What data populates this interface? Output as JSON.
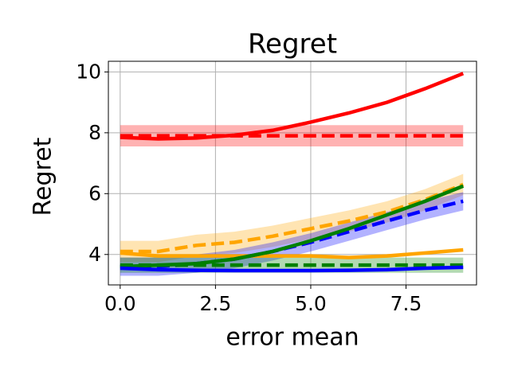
{
  "chart_data": {
    "type": "line",
    "title": "Regret",
    "xlabel": "error mean",
    "ylabel": "Regret",
    "x": [
      0,
      1,
      2,
      3,
      4,
      5,
      6,
      7,
      8,
      9
    ],
    "xlim": [
      -0.31,
      9.35
    ],
    "ylim": [
      3.0,
      10.35
    ],
    "xticks": [
      {
        "value": 0,
        "label": "0.0"
      },
      {
        "value": 2.5,
        "label": "2.5"
      },
      {
        "value": 5,
        "label": "5.0"
      },
      {
        "value": 7.5,
        "label": "7.5"
      }
    ],
    "yticks": [
      4,
      6,
      8,
      10
    ],
    "grid": true,
    "series": [
      {
        "color": "#ff0000",
        "dash": false,
        "values": [
          7.85,
          7.8,
          7.83,
          7.92,
          8.08,
          8.35,
          8.65,
          9.0,
          9.45,
          9.95
        ]
      },
      {
        "color": "#ff0000",
        "dash": true,
        "values": [
          7.9,
          7.9,
          7.9,
          7.9,
          7.9,
          7.9,
          7.9,
          7.9,
          7.9,
          7.9
        ],
        "band_lower": [
          7.55,
          7.55,
          7.55,
          7.55,
          7.55,
          7.55,
          7.55,
          7.55,
          7.55,
          7.55
        ],
        "band_upper": [
          8.25,
          8.25,
          8.25,
          8.25,
          8.25,
          8.25,
          8.25,
          8.25,
          8.25,
          8.25
        ]
      },
      {
        "color": "#ffa500",
        "dash": true,
        "values": [
          4.1,
          4.1,
          4.3,
          4.4,
          4.6,
          4.85,
          5.1,
          5.4,
          5.8,
          6.3
        ],
        "band_lower": [
          3.75,
          3.75,
          3.95,
          4.05,
          4.25,
          4.5,
          4.75,
          5.05,
          5.45,
          5.95
        ],
        "band_upper": [
          4.45,
          4.45,
          4.65,
          4.75,
          4.95,
          5.2,
          5.45,
          5.75,
          6.15,
          6.65
        ]
      },
      {
        "color": "#ffa500",
        "dash": false,
        "values": [
          4.05,
          3.95,
          3.95,
          3.95,
          3.95,
          3.95,
          3.9,
          3.95,
          4.05,
          4.15
        ]
      },
      {
        "color": "#0000ff",
        "dash": true,
        "values": [
          3.6,
          3.6,
          3.7,
          3.85,
          4.1,
          4.4,
          4.75,
          5.1,
          5.45,
          5.75
        ],
        "band_lower": [
          3.3,
          3.3,
          3.4,
          3.55,
          3.8,
          4.1,
          4.45,
          4.8,
          5.15,
          5.45
        ],
        "band_upper": [
          3.9,
          3.9,
          4.0,
          4.15,
          4.4,
          4.7,
          5.05,
          5.4,
          5.75,
          6.05
        ]
      },
      {
        "color": "#008000",
        "dash": true,
        "values": [
          3.65,
          3.65,
          3.65,
          3.65,
          3.65,
          3.65,
          3.65,
          3.65,
          3.65,
          3.65
        ],
        "band_lower": [
          3.4,
          3.4,
          3.4,
          3.4,
          3.4,
          3.4,
          3.4,
          3.4,
          3.4,
          3.4
        ],
        "band_upper": [
          3.9,
          3.9,
          3.9,
          3.9,
          3.9,
          3.9,
          3.9,
          3.9,
          3.9,
          3.9
        ]
      },
      {
        "color": "#008000",
        "dash": false,
        "values": [
          3.6,
          3.65,
          3.7,
          3.85,
          4.1,
          4.45,
          4.85,
          5.3,
          5.75,
          6.25
        ]
      },
      {
        "color": "#0000ff",
        "dash": false,
        "values": [
          3.55,
          3.5,
          3.48,
          3.47,
          3.47,
          3.47,
          3.48,
          3.5,
          3.55,
          3.58
        ]
      }
    ]
  }
}
